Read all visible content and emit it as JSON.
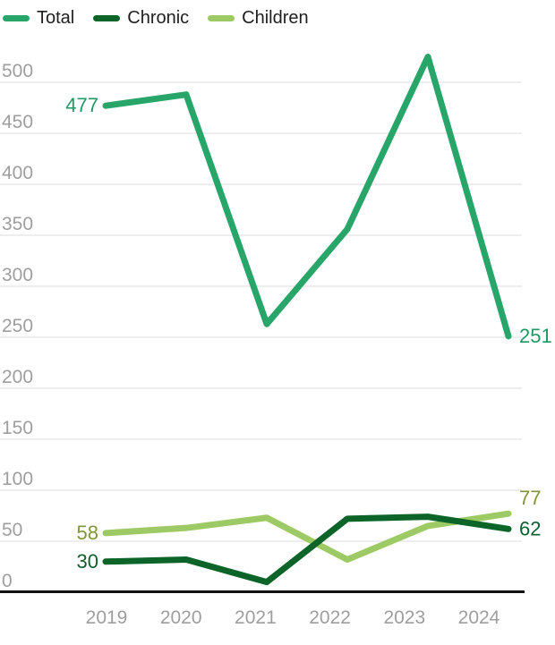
{
  "chart_data": {
    "type": "line",
    "title": "",
    "xlabel": "",
    "ylabel": "",
    "x_labels": [
      "2019",
      "2020",
      "2021",
      "2022",
      "2023",
      "2024"
    ],
    "series": [
      {
        "name": "Total",
        "color": "#28a66a",
        "label_color": "#1d9a62",
        "values": [
          477,
          488,
          263,
          356,
          525,
          251
        ],
        "first_label": "477",
        "last_label": "251"
      },
      {
        "name": "Chronic",
        "color": "#0c6428",
        "label_color": "#0d5f2b",
        "values": [
          30,
          32,
          10,
          72,
          74,
          62
        ],
        "first_label": "30",
        "last_label": "62"
      },
      {
        "name": "Children",
        "color": "#9dca64",
        "label_color": "#7f9734",
        "values": [
          58,
          63,
          73,
          32,
          65,
          77
        ],
        "first_label": "58",
        "last_label": "77"
      }
    ],
    "yticks": [
      0,
      50,
      100,
      150,
      200,
      250,
      300,
      350,
      400,
      450,
      500
    ],
    "ylim": [
      0,
      500
    ],
    "grid": true,
    "legend_position": "top",
    "colors": {
      "axis": "#111111",
      "grid": "#e8e8e8",
      "tick_labels": "#9e9e9e",
      "legend_text": "#1e1e1e"
    }
  }
}
